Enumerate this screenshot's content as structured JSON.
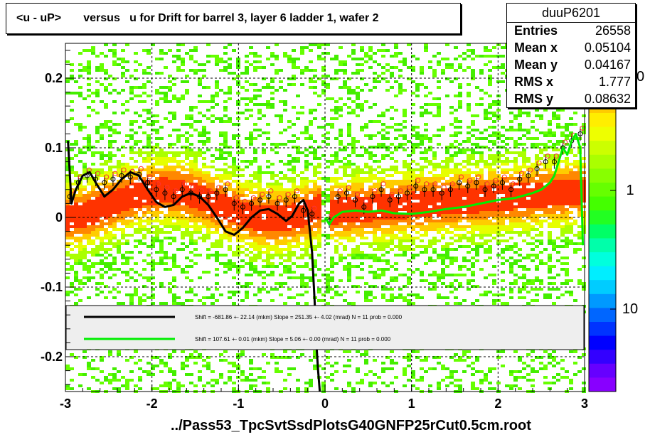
{
  "title": "<u - uP>       versus   u for Drift for barrel 3, layer 6 ladder 1, wafer 2",
  "stats": {
    "name": "duuP6201",
    "rows": [
      {
        "label": "Entries",
        "value": "26558"
      },
      {
        "label": "Mean x",
        "value": "0.05104"
      },
      {
        "label": "Mean y",
        "value": "0.04167"
      },
      {
        "label": "RMS x",
        "value": "1.777"
      },
      {
        "label": "RMS y",
        "value": "0.08632"
      }
    ]
  },
  "footer": "../Pass53_TpcSvtSsdPlotsG40GNFP25rCut0.5cm.root",
  "colors": {
    "black_fit": "#000000",
    "green_fit": "#00ee00",
    "legend_bg": "#eeeeee"
  },
  "chart_data": {
    "type": "heatmap",
    "xlim": [
      -3,
      3
    ],
    "ylim": [
      -0.25,
      0.25
    ],
    "x_ticks": [
      "-3",
      "-2",
      "-1",
      "0",
      "1",
      "2",
      "3"
    ],
    "y_ticks": [
      "-0.2",
      "-0.1",
      "0",
      "0.1",
      "0.2"
    ],
    "grid": true,
    "colorbar": {
      "scale": "log",
      "labels": [
        "1",
        "10"
      ],
      "partial_label": "0"
    },
    "legend": {
      "placement": "bottom-inside",
      "entries": [
        {
          "color": "black",
          "text": "Shift =  -681.86 +- 22.14 (mkm) Slope =   251.35 +- 4.02 (mrad)  N = 11 prob = 0.000"
        },
        {
          "color": "green",
          "text": "Shift =   107.61 +- 0.01 (mkm) Slope =     5.06 +- 0.00 (mrad)  N = 11 prob = 0.000"
        }
      ]
    },
    "black_fit_curve": {
      "x": [
        -2.97,
        -2.93,
        -2.88,
        -2.8,
        -2.72,
        -2.65,
        -2.55,
        -2.45,
        -2.35,
        -2.25,
        -2.15,
        -2.05,
        -1.95,
        -1.85,
        -1.75,
        -1.65,
        -1.55,
        -1.45,
        -1.35,
        -1.25,
        -1.15,
        -1.05,
        -0.95,
        -0.85,
        -0.75,
        -0.65,
        -0.55,
        -0.45,
        -0.38,
        -0.3,
        -0.25,
        -0.2,
        -0.15,
        -0.12,
        -0.1,
        -0.08,
        -0.06
      ],
      "y": [
        0.11,
        0.02,
        0.04,
        0.06,
        0.065,
        0.05,
        0.03,
        0.04,
        0.055,
        0.065,
        0.06,
        0.04,
        0.022,
        0.015,
        0.018,
        0.03,
        0.035,
        0.03,
        0.018,
        0.0,
        -0.02,
        -0.025,
        -0.015,
        0.0,
        0.01,
        0.012,
        0.005,
        -0.005,
        0.002,
        0.02,
        0.025,
        0.01,
        -0.05,
        -0.12,
        -0.18,
        -0.22,
        -0.25
      ]
    },
    "green_fit_curve": {
      "x": [
        0.0,
        0.05,
        0.1,
        0.2,
        0.35,
        0.5,
        0.65,
        0.8,
        1.0,
        1.2,
        1.4,
        1.6,
        1.8,
        2.0,
        2.2,
        2.4,
        2.5,
        2.6,
        2.65,
        2.7,
        2.75,
        2.8,
        2.85,
        2.9,
        2.95,
        2.98
      ],
      "y": [
        0.0,
        -0.01,
        0.0,
        0.008,
        0.01,
        0.008,
        0.01,
        0.006,
        0.005,
        0.008,
        0.012,
        0.015,
        0.02,
        0.025,
        0.028,
        0.035,
        0.04,
        0.05,
        0.06,
        0.08,
        0.1,
        0.09,
        0.11,
        0.12,
        0.1,
        -0.04
      ]
    },
    "profile_points": {
      "x": [
        -2.95,
        -2.85,
        -2.75,
        -2.65,
        -2.55,
        -2.45,
        -2.35,
        -2.25,
        -2.15,
        -2.05,
        -1.95,
        -1.85,
        -1.75,
        -1.65,
        -1.55,
        -1.45,
        -1.35,
        -1.25,
        -1.15,
        -1.05,
        -0.95,
        -0.85,
        -0.75,
        -0.65,
        -0.55,
        -0.45,
        -0.35,
        -0.25,
        -0.15,
        0.05,
        0.15,
        0.25,
        0.35,
        0.45,
        0.55,
        0.65,
        0.75,
        0.85,
        0.95,
        1.05,
        1.15,
        1.25,
        1.35,
        1.45,
        1.55,
        1.65,
        1.75,
        1.85,
        1.95,
        2.05,
        2.15,
        2.25,
        2.35,
        2.45,
        2.55,
        2.65,
        2.75,
        2.85,
        2.95
      ],
      "y": [
        0.03,
        0.05,
        0.06,
        0.055,
        0.05,
        0.055,
        0.06,
        0.058,
        0.062,
        0.05,
        0.04,
        0.035,
        0.03,
        0.04,
        0.035,
        0.03,
        0.03,
        0.035,
        0.04,
        0.02,
        0.015,
        0.02,
        0.025,
        0.03,
        0.02,
        0.025,
        0.03,
        0.01,
        0.005,
        -0.005,
        0.03,
        0.035,
        0.025,
        0.015,
        0.03,
        0.04,
        0.025,
        0.03,
        0.035,
        0.045,
        0.04,
        0.04,
        0.035,
        0.04,
        0.05,
        0.045,
        0.05,
        0.04,
        0.045,
        0.05,
        0.04,
        0.055,
        0.06,
        0.07,
        0.08,
        0.08,
        0.1,
        0.11,
        0.12
      ]
    }
  }
}
